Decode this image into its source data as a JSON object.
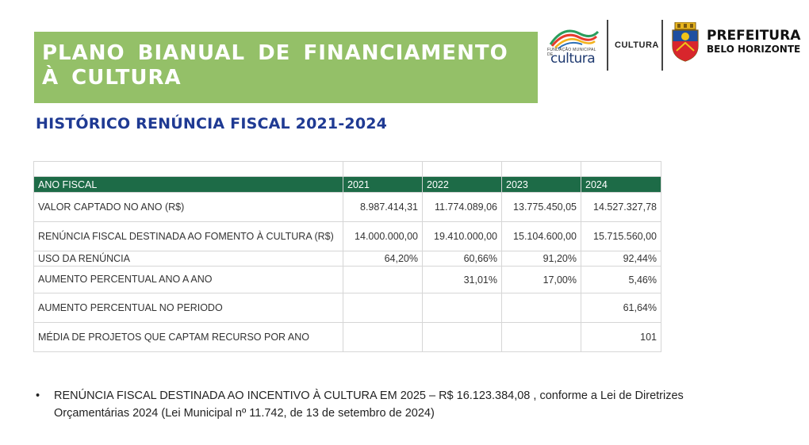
{
  "header": {
    "title": "PLANO BIANUAL DE FINANCIAMENTO À CULTURA",
    "subtitle": "HISTÓRICO RENÚNCIA FISCAL 2021-2024"
  },
  "logos": {
    "fundacao_small": "FUNDAÇÃO MUNICIPAL DE",
    "fundacao_big": "cultura",
    "cultura_label": "CULTURA",
    "prefeitura_line1": "PREFEITURA",
    "prefeitura_line2": "BELO HORIZONTE"
  },
  "table": {
    "headers": [
      "ANO FISCAL",
      "2021",
      "2022",
      "2023",
      "2024"
    ],
    "rows": [
      [
        "VALOR CAPTADO NO ANO (R$)",
        "8.987.414,31",
        "11.774.089,06",
        "13.775.450,05",
        "14.527.327,78"
      ],
      [
        "RENÚNCIA FISCAL DESTINADA AO FOMENTO À CULTURA (R$)",
        "14.000.000,00",
        "19.410.000,00",
        "15.104.600,00",
        "15.715.560,00"
      ],
      [
        "USO DA RENÚNCIA",
        "64,20%",
        "60,66%",
        "91,20%",
        "92,44%"
      ],
      [
        "AUMENTO PERCENTUAL ANO A ANO",
        "",
        "31,01%",
        "17,00%",
        "5,46%"
      ],
      [
        "AUMENTO PERCENTUAL NO PERIODO",
        "",
        "",
        "",
        "61,64%"
      ],
      [
        "MÉDIA DE PROJETOS QUE CAPTAM RECURSO POR ANO",
        "",
        "",
        "",
        "101"
      ]
    ]
  },
  "note": {
    "bullet": "•",
    "text": "RENÚNCIA FISCAL DESTINADA AO INCENTIVO À CULTURA EM 2025 – R$ 16.123.384,08 , conforme a Lei de Diretrizes Orçamentárias 2024 (Lei Municipal nº 11.742, de 13 de setembro de 2024)"
  },
  "colors": {
    "title_bg": "#94c068",
    "subtitle": "#1f3a93",
    "table_header_bg": "#1d6b47"
  }
}
